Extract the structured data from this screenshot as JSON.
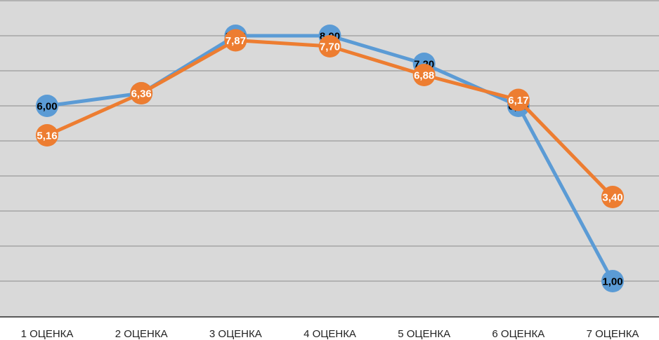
{
  "chart_data": {
    "type": "line",
    "categories": [
      "1 ОЦЕНКА",
      "2 ОЦЕНКА",
      "3 ОЦЕНКА",
      "4 ОЦЕНКА",
      "5 ОЦЕНКА",
      "6 ОЦЕНКА",
      "7 ОЦЕНКА"
    ],
    "series": [
      {
        "values": [
          6.0,
          6.36,
          8.0,
          8.0,
          7.2,
          6.0,
          1.0
        ],
        "labels": [
          "6,00",
          "6,36",
          "8,00",
          "8,00",
          "7,20",
          "6,00",
          "1,00"
        ],
        "color": "#5B9BD5",
        "label_color": "#000000"
      },
      {
        "values": [
          5.16,
          6.36,
          7.87,
          7.7,
          6.88,
          6.17,
          3.4
        ],
        "labels": [
          "5,16",
          "6,36",
          "7,87",
          "7,70",
          "6,88",
          "6,17",
          "3,40"
        ],
        "color": "#ED7D31",
        "label_color": "#ffffff"
      }
    ],
    "ylim": [
      0,
      9
    ],
    "grid": true,
    "legend": "none",
    "title": "",
    "xlabel": "",
    "ylabel": "",
    "plot_background": "#D9D9D9",
    "gridline_color": "#A6A6A6",
    "axis_color": "#595959"
  }
}
